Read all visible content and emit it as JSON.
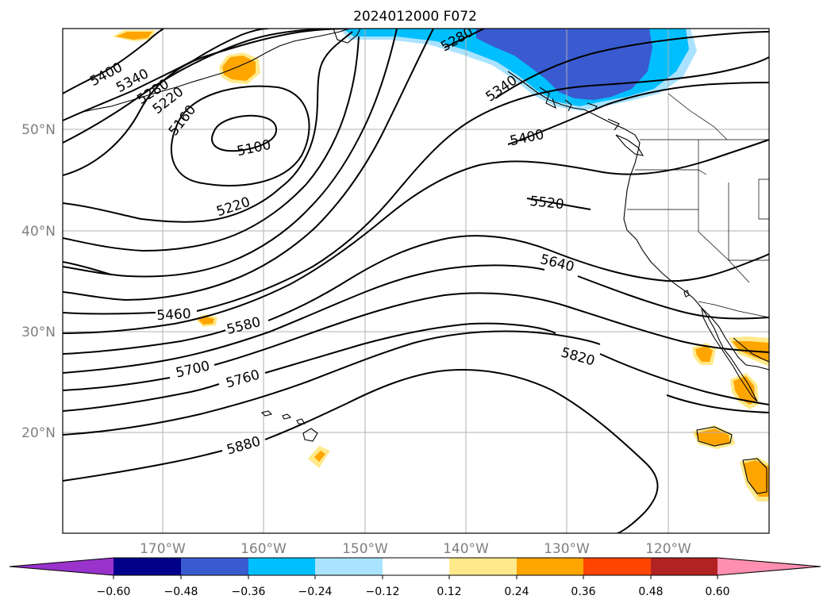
{
  "title": "2024012000 F072",
  "lat_labels": [
    "50°N",
    "40°N",
    "30°N",
    "20°N"
  ],
  "lon_labels": [
    "170°W",
    "160°W",
    "150°W",
    "140°W",
    "130°W",
    "120°W"
  ],
  "contour_labels": [
    "5400",
    "5340",
    "5280",
    "5220",
    "5160",
    "5100",
    "5220",
    "5280",
    "5340",
    "5400",
    "5520",
    "5640",
    "5460",
    "5580",
    "5700",
    "5760",
    "5820",
    "5880"
  ],
  "colorbar": {
    "ticks": [
      "−0.60",
      "−0.48",
      "−0.36",
      "−0.24",
      "−0.12",
      "0.12",
      "0.24",
      "0.36",
      "0.48",
      "0.60"
    ],
    "colors": [
      "#9933cc",
      "#00008b",
      "#3a5bd0",
      "#00bfff",
      "#aae3ff",
      "#ffffff",
      "#ffe98a",
      "#ffa500",
      "#ff4500",
      "#b22222",
      "#ff8fb0"
    ]
  },
  "fill_colors": {
    "light_blue": "#aae3ff",
    "blue": "#00bfff",
    "royal_blue": "#3a5bd0",
    "yellow": "#ffe98a",
    "orange": "#ffa500"
  }
}
